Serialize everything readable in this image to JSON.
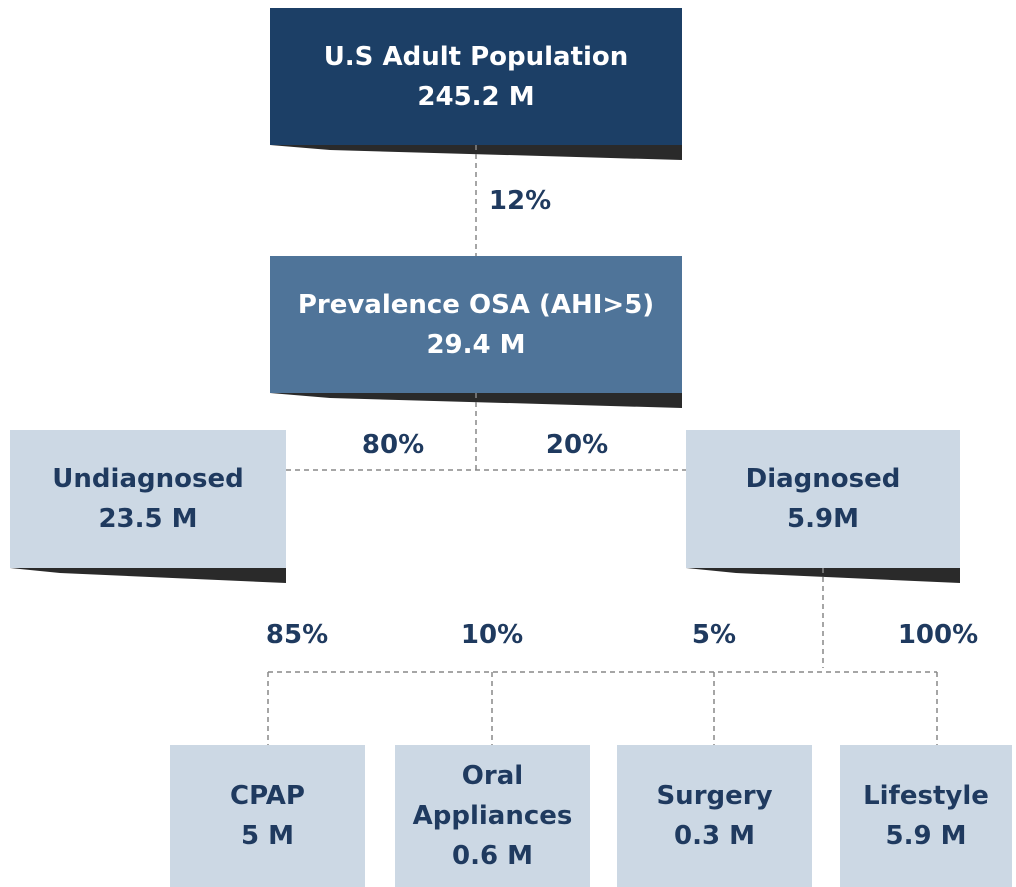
{
  "nodes": [
    {
      "lines": [
        "U.S Adult Population",
        "245.2 M"
      ]
    },
    {
      "lines": [
        "Prevalence OSA (AHI>5)",
        "29.4 M"
      ]
    },
    {
      "lines": [
        "Undiagnosed",
        "23.5 M"
      ]
    },
    {
      "lines": [
        "Diagnosed",
        "5.9M"
      ]
    },
    {
      "lines": [
        "CPAP",
        "5 M"
      ]
    },
    {
      "lines": [
        "Oral",
        "Appliances",
        "0.6 M"
      ]
    },
    {
      "lines": [
        "Surgery",
        "0.3 M"
      ]
    },
    {
      "lines": [
        "Lifestyle",
        "5.9 M"
      ]
    }
  ],
  "edges": [
    {
      "label": "12%"
    },
    {
      "label": "80%"
    },
    {
      "label": "20%"
    },
    {
      "label": "85%"
    },
    {
      "label": "10%"
    },
    {
      "label": "5%"
    },
    {
      "label": "100%"
    }
  ]
}
